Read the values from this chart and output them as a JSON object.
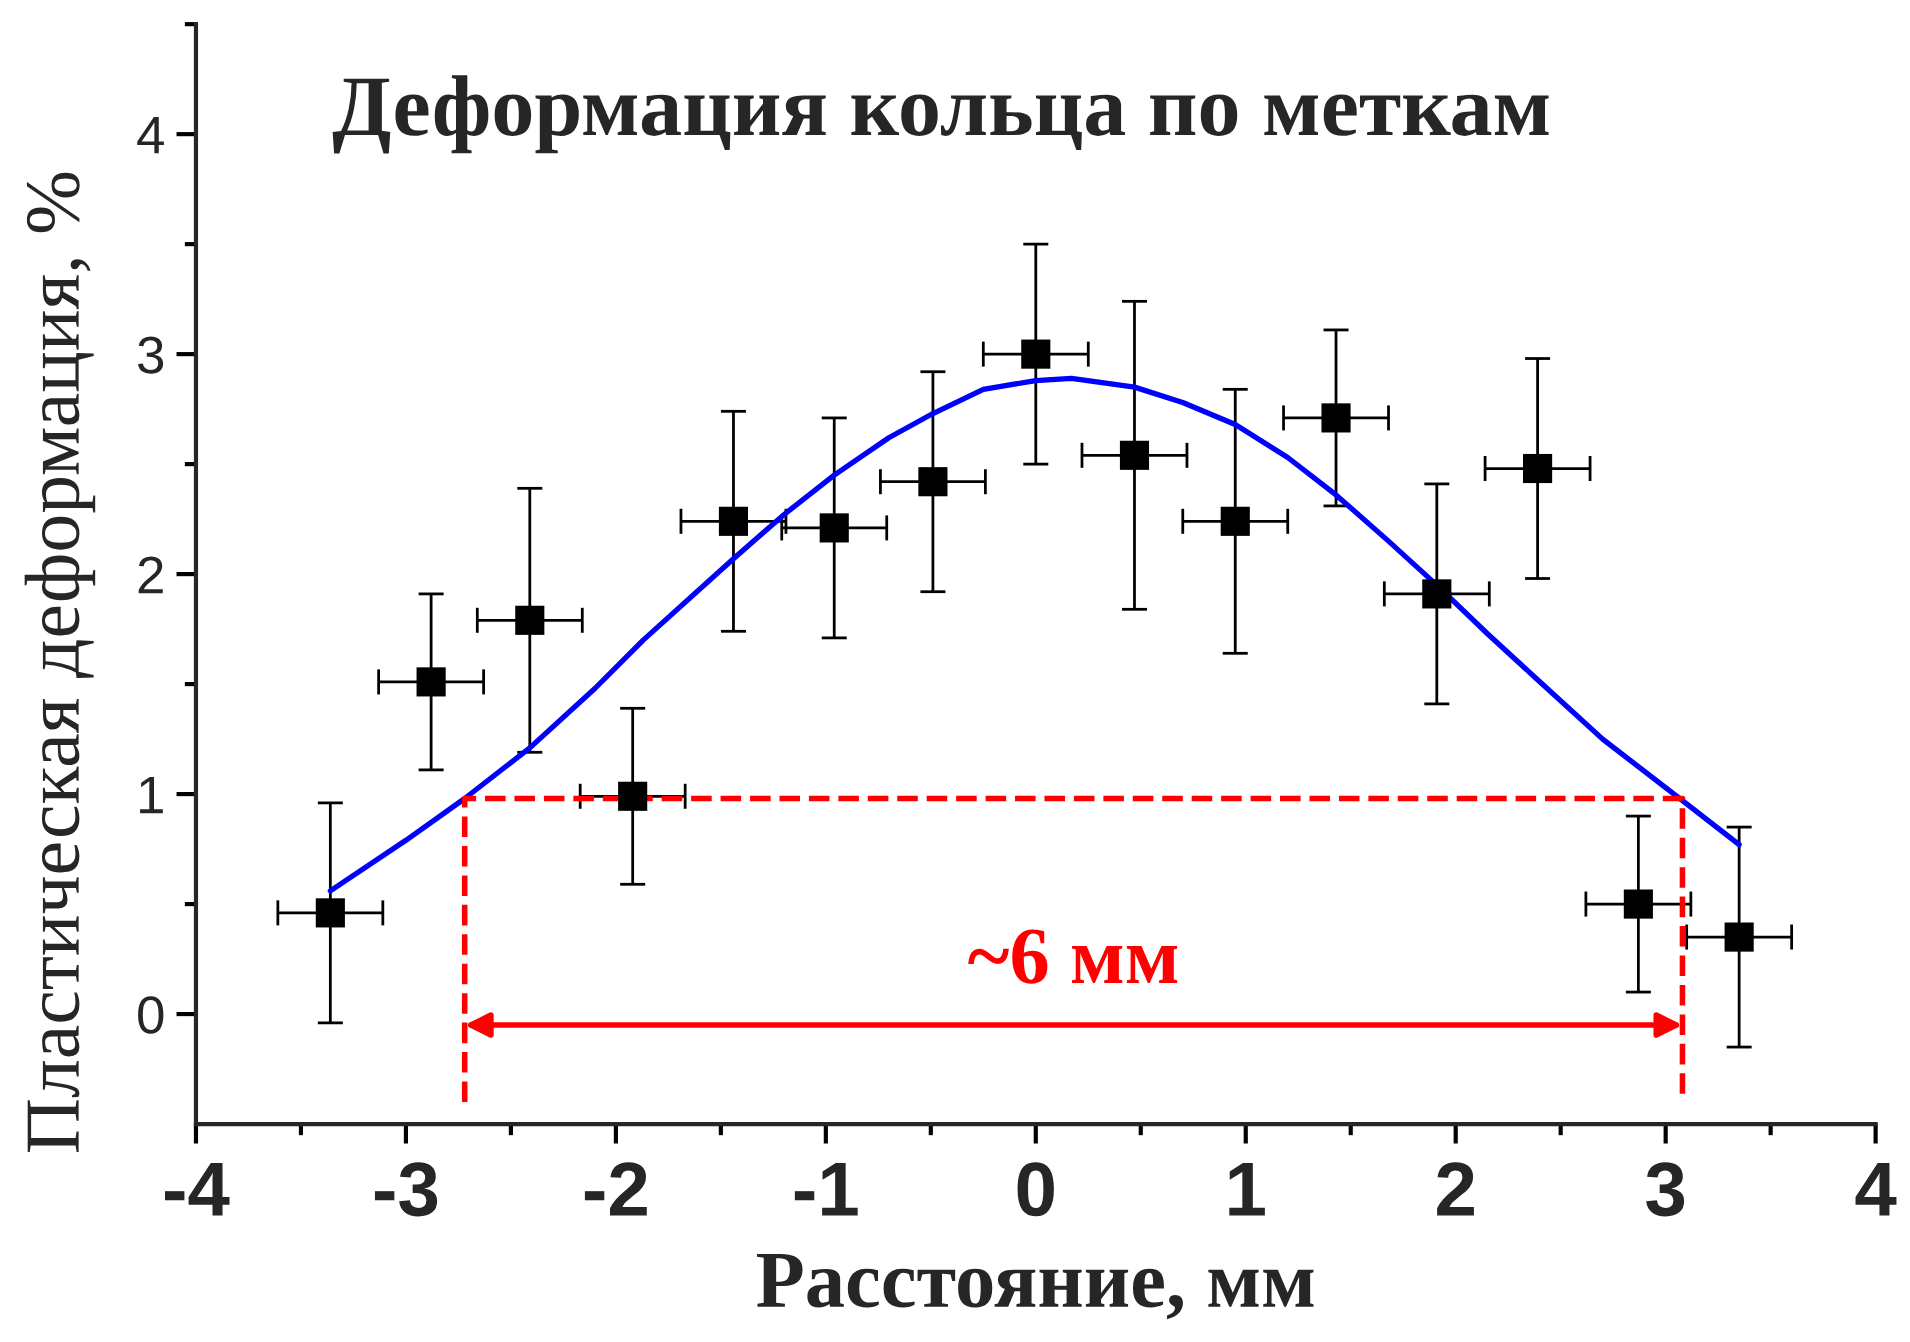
{
  "chart_data": {
    "type": "scatter",
    "title": "Деформация кольца по меткам",
    "xlabel": "Расстояние, мм",
    "ylabel": "Пластическая деформация, %",
    "series": [
      {
        "color": "#000000",
        "marker": "square",
        "x": [
          -3.36,
          -2.88,
          -2.41,
          -1.92,
          -1.44,
          -0.96,
          -0.49,
          0,
          0.47,
          0.95,
          1.43,
          1.91,
          2.39,
          2.87,
          3.35
        ],
        "values": [
          0.46,
          1.51,
          1.79,
          0.99,
          2.24,
          2.21,
          2.42,
          3.0,
          2.54,
          2.24,
          2.71,
          1.91,
          2.48,
          0.5,
          0.35
        ],
        "errors": [
          0.5,
          0.4,
          0.6,
          0.4,
          0.5,
          0.5,
          0.5,
          0.5,
          0.7,
          0.6,
          0.4,
          0.5,
          0.5,
          0.4,
          0.5
        ],
        "xerrors": [
          0.25,
          0.25,
          0.25,
          0.25,
          0.25,
          0.25,
          0.25,
          0.25,
          0.25,
          0.25,
          0.25,
          0.25,
          0.25,
          0.25,
          0.25
        ]
      },
      {
        "type": "line",
        "color": "#0000ff",
        "marker": "none",
        "line_style": "solid",
        "x": [
          -3.36,
          -3.0,
          -2.72,
          -2.41,
          -2.1,
          -1.87,
          -1.44,
          -1.2,
          -0.96,
          -0.7,
          -0.49,
          -0.25,
          0,
          0.17,
          0.47,
          0.7,
          0.95,
          1.2,
          1.43,
          1.68,
          1.91,
          2.15,
          2.39,
          2.7,
          3.08,
          3.35
        ],
        "values": [
          0.56,
          0.79,
          0.98,
          1.21,
          1.48,
          1.7,
          2.07,
          2.27,
          2.45,
          2.62,
          2.73,
          2.84,
          2.88,
          2.89,
          2.85,
          2.78,
          2.68,
          2.53,
          2.36,
          2.15,
          1.95,
          1.73,
          1.52,
          1.25,
          0.97,
          0.77
        ]
      },
      {
        "type": "line",
        "color": "#ff0000",
        "marker": "none",
        "line_style": "dashed",
        "x": [
          -2.72,
          -2.72,
          3.08,
          3.08
        ],
        "values": [
          -0.4,
          0.98,
          0.98,
          -0.4
        ]
      }
    ],
    "annotations": [
      "~6 мм"
    ],
    "xlim": [
      -4,
      4
    ],
    "ylim": [
      -0.5,
      4.5
    ],
    "xticks": [
      -4,
      {
        "value": -3.5,
        "label": null
      },
      -3,
      {
        "value": -2.5,
        "label": null
      },
      -2,
      {
        "value": -1.5,
        "label": null
      },
      -1,
      {
        "value": -0.5,
        "label": null
      },
      0,
      {
        "value": 0.5,
        "label": null
      },
      1,
      {
        "value": 1.5,
        "label": null
      },
      2,
      {
        "value": 2.5,
        "label": null
      },
      3,
      {
        "value": 3.5,
        "label": null
      },
      4
    ],
    "yticks": [
      0,
      {
        "value": 0.5,
        "label": null
      },
      1,
      {
        "value": 1.5,
        "label": null
      },
      2,
      {
        "value": 2.5,
        "label": null
      },
      3,
      {
        "value": 3.5,
        "label": null
      },
      4,
      {
        "value": 4.5,
        "label": null
      }
    ]
  }
}
